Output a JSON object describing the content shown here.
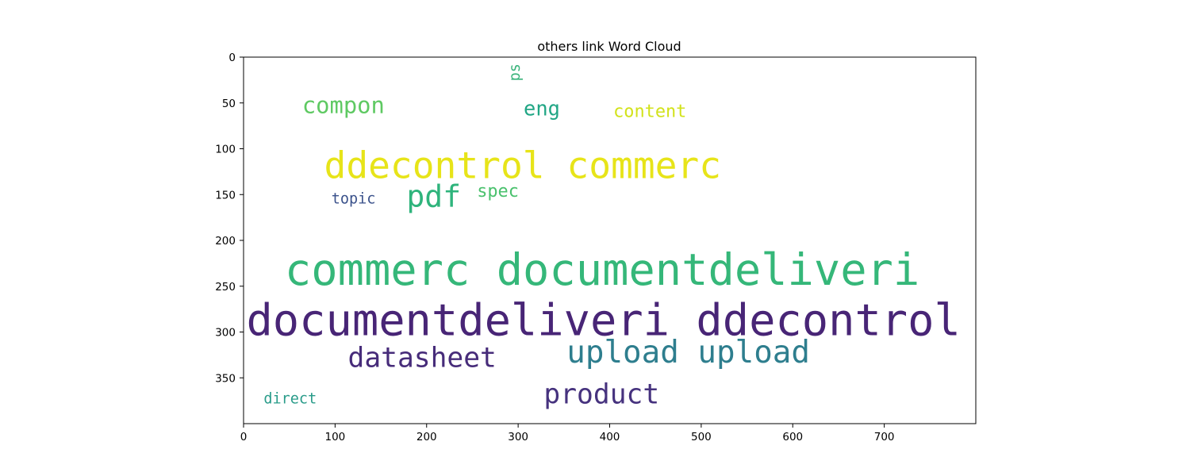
{
  "chart_data": {
    "type": "word_cloud",
    "title": "others link Word Cloud",
    "xlim": [
      0,
      800
    ],
    "ylim": [
      400,
      0
    ],
    "x_ticks": [
      0,
      100,
      200,
      300,
      400,
      500,
      600,
      700
    ],
    "y_ticks": [
      0,
      50,
      100,
      150,
      200,
      250,
      300,
      350
    ],
    "words": [
      {
        "text": "documentdeliveri ddecontrol",
        "x": 3,
        "y": 265,
        "size": 48,
        "color": "#482576"
      },
      {
        "text": "commerc documentdeliveri",
        "x": 45,
        "y": 210,
        "size": 48,
        "color": "#35b779"
      },
      {
        "text": "ddecontrol commerc",
        "x": 88,
        "y": 100,
        "size": 40,
        "color": "#e7e419"
      },
      {
        "text": "upload upload",
        "x": 353,
        "y": 306,
        "size": 34,
        "color": "#2e7e8e"
      },
      {
        "text": "pdf",
        "x": 178,
        "y": 137,
        "size": 33,
        "color": "#2fb47c"
      },
      {
        "text": "datasheet",
        "x": 114,
        "y": 314,
        "size": 30,
        "color": "#472c7a"
      },
      {
        "text": "product",
        "x": 328,
        "y": 354,
        "size": 30,
        "color": "#46327e"
      },
      {
        "text": "compon",
        "x": 64,
        "y": 41,
        "size": 25,
        "color": "#5ec962"
      },
      {
        "text": "eng",
        "x": 306,
        "y": 46,
        "size": 22,
        "color": "#21a685"
      },
      {
        "text": "content",
        "x": 404,
        "y": 50,
        "size": 19,
        "color": "#d2e21b"
      },
      {
        "text": "spec",
        "x": 255,
        "y": 137,
        "size": 19,
        "color": "#4ac16d"
      },
      {
        "text": "topic",
        "x": 96,
        "y": 147,
        "size": 16,
        "color": "#3b528b"
      },
      {
        "text": "direct",
        "x": 22,
        "y": 365,
        "size": 16,
        "color": "#2a9c8a"
      },
      {
        "text": "ps",
        "x": 289,
        "y": 7,
        "size": 16,
        "color": "#3ab37b",
        "rotate": -90
      }
    ]
  }
}
